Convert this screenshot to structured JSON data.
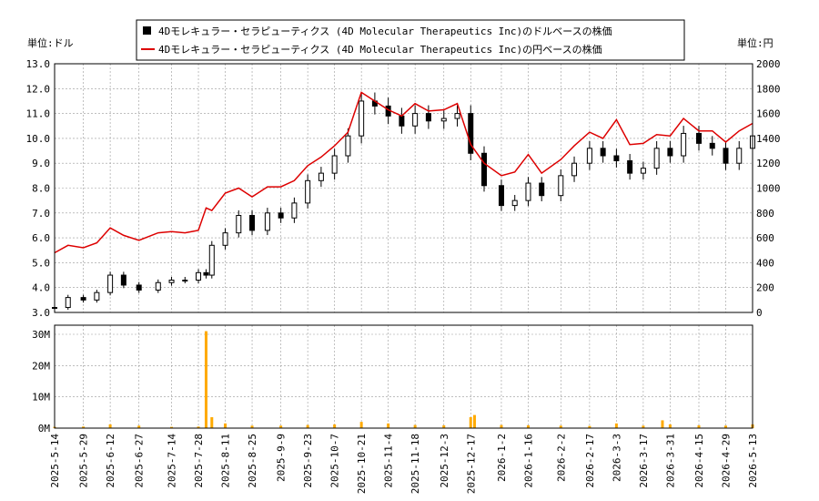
{
  "legend": {
    "usd_label": "4Dモレキュラー・セラピューティクス (4D Molecular Therapeutics Inc)のドルベースの株価",
    "jpy_label": "4Dモレキュラー・セラピューティクス (4D Molecular Therapeutics Inc)の円ベースの株価"
  },
  "colors": {
    "candle": "#000000",
    "jpy_line": "#dd0000",
    "volume": "#ffaa00",
    "grid": "#999999"
  },
  "chart_data": [
    {
      "type": "line",
      "title": "",
      "ylabel_left": "単位:ドル",
      "ylabel_right": "単位:円",
      "ylim_left": [
        3.0,
        13.0
      ],
      "ylim_right": [
        0,
        2000
      ],
      "y_ticks_left": [
        "3.0",
        "4.0",
        "5.0",
        "6.0",
        "7.0",
        "8.0",
        "9.0",
        "10.0",
        "11.0",
        "12.0",
        "13.0"
      ],
      "y_ticks_right": [
        "0",
        "200",
        "400",
        "600",
        "800",
        "1000",
        "1200",
        "1400",
        "1600",
        "1800",
        "2000"
      ],
      "x_ticks": [
        "2025-5-14",
        "2025-5-29",
        "2025-6-12",
        "2025-6-27",
        "2025-7-14",
        "2025-7-28",
        "2025-8-11",
        "2025-8-25",
        "2025-9-9",
        "2025-9-23",
        "2025-10-7",
        "2025-10-21",
        "2025-11-4",
        "2025-11-18",
        "2025-12-3",
        "2025-12-17",
        "2026-1-2",
        "2026-1-16",
        "2026-2-2",
        "2026-2-17",
        "2026-3-3",
        "2026-3-17",
        "2026-3-31",
        "2026-4-15",
        "2026-4-29",
        "2026-5-13"
      ],
      "grid": true,
      "legend_position": "top-center",
      "series": [
        {
          "name": "4Dモレキュラー・セラピューティクス (4D Molecular Therapeutics Inc)のドルベースの株価",
          "style": "candlestick",
          "x": [
            "2025-5-14",
            "2025-5-21",
            "2025-5-29",
            "2025-6-5",
            "2025-6-12",
            "2025-6-19",
            "2025-6-27",
            "2025-7-7",
            "2025-7-14",
            "2025-7-21",
            "2025-7-28",
            "2025-8-1",
            "2025-8-4",
            "2025-8-11",
            "2025-8-18",
            "2025-8-25",
            "2025-9-2",
            "2025-9-9",
            "2025-9-16",
            "2025-9-23",
            "2025-9-30",
            "2025-10-7",
            "2025-10-14",
            "2025-10-21",
            "2025-10-28",
            "2025-11-4",
            "2025-11-11",
            "2025-11-18",
            "2025-11-25",
            "2025-12-3",
            "2025-12-10",
            "2025-12-17",
            "2025-12-24",
            "2026-1-2",
            "2026-1-9",
            "2026-1-16",
            "2026-1-23",
            "2026-2-2",
            "2026-2-9",
            "2026-2-17",
            "2026-2-24",
            "2026-3-3",
            "2026-3-10",
            "2026-3-17",
            "2026-3-24",
            "2026-3-31",
            "2026-4-7",
            "2026-4-15",
            "2026-4-22",
            "2026-4-29",
            "2026-5-6",
            "2026-5-13"
          ],
          "values": [
            3.2,
            3.6,
            3.5,
            3.8,
            4.5,
            4.1,
            3.9,
            4.2,
            4.3,
            4.3,
            4.6,
            4.5,
            5.7,
            6.2,
            6.9,
            6.3,
            7.0,
            6.8,
            7.4,
            8.3,
            8.6,
            9.3,
            10.1,
            11.5,
            11.3,
            10.9,
            10.5,
            11.0,
            10.7,
            10.8,
            11.0,
            9.4,
            8.1,
            7.3,
            7.5,
            8.2,
            7.7,
            8.5,
            9.0,
            9.6,
            9.3,
            9.1,
            8.6,
            8.8,
            9.6,
            9.3,
            10.2,
            9.8,
            9.6,
            9.0,
            9.6,
            10.1
          ]
        },
        {
          "name": "4Dモレキュラー・セラピューティクス (4D Molecular Therapeutics Inc)の円ベースの株価",
          "x": [
            "2025-5-14",
            "2025-5-21",
            "2025-5-29",
            "2025-6-5",
            "2025-6-12",
            "2025-6-19",
            "2025-6-27",
            "2025-7-7",
            "2025-7-14",
            "2025-7-21",
            "2025-7-28",
            "2025-8-1",
            "2025-8-4",
            "2025-8-11",
            "2025-8-18",
            "2025-8-25",
            "2025-9-2",
            "2025-9-9",
            "2025-9-16",
            "2025-9-23",
            "2025-9-30",
            "2025-10-7",
            "2025-10-14",
            "2025-10-21",
            "2025-10-28",
            "2025-11-4",
            "2025-11-11",
            "2025-11-18",
            "2025-11-25",
            "2025-12-3",
            "2025-12-10",
            "2025-12-17",
            "2025-12-24",
            "2026-1-2",
            "2026-1-9",
            "2026-1-16",
            "2026-1-23",
            "2026-2-2",
            "2026-2-9",
            "2026-2-17",
            "2026-2-24",
            "2026-3-3",
            "2026-3-10",
            "2026-3-17",
            "2026-3-24",
            "2026-3-31",
            "2026-4-7",
            "2026-4-15",
            "2026-4-22",
            "2026-4-29",
            "2026-5-6",
            "2026-5-13"
          ],
          "values": [
            480,
            540,
            520,
            560,
            680,
            620,
            580,
            640,
            650,
            640,
            660,
            840,
            820,
            960,
            1000,
            930,
            1010,
            1010,
            1060,
            1180,
            1250,
            1340,
            1450,
            1770,
            1700,
            1630,
            1580,
            1680,
            1620,
            1630,
            1680,
            1350,
            1200,
            1100,
            1130,
            1270,
            1120,
            1230,
            1340,
            1450,
            1400,
            1550,
            1350,
            1360,
            1430,
            1420,
            1560,
            1460,
            1460,
            1370,
            1460,
            1520
          ]
        }
      ]
    },
    {
      "type": "bar",
      "title": "",
      "ylim": [
        0,
        30000000
      ],
      "y_ticks": [
        "0M",
        "10M",
        "20M",
        "30M"
      ],
      "grid": true,
      "series": [
        {
          "name": "",
          "x": [
            "2025-5-14",
            "2025-5-29",
            "2025-6-12",
            "2025-6-27",
            "2025-7-14",
            "2025-7-28",
            "2025-8-1",
            "2025-8-4",
            "2025-8-11",
            "2025-8-25",
            "2025-9-9",
            "2025-9-23",
            "2025-10-7",
            "2025-10-21",
            "2025-11-4",
            "2025-11-18",
            "2025-12-3",
            "2025-12-17",
            "2025-12-19",
            "2026-1-2",
            "2026-1-16",
            "2026-2-2",
            "2026-2-17",
            "2026-3-3",
            "2026-3-17",
            "2026-3-27",
            "2026-3-31",
            "2026-4-15",
            "2026-4-29",
            "2026-5-13"
          ],
          "values": [
            400000,
            500000,
            1200000,
            800000,
            400000,
            500000,
            31000000,
            3500000,
            1500000,
            800000,
            800000,
            1000000,
            1200000,
            2000000,
            1500000,
            1000000,
            900000,
            3500000,
            4200000,
            1000000,
            900000,
            800000,
            700000,
            1500000,
            800000,
            2500000,
            1200000,
            900000,
            800000,
            1200000
          ]
        }
      ]
    }
  ]
}
